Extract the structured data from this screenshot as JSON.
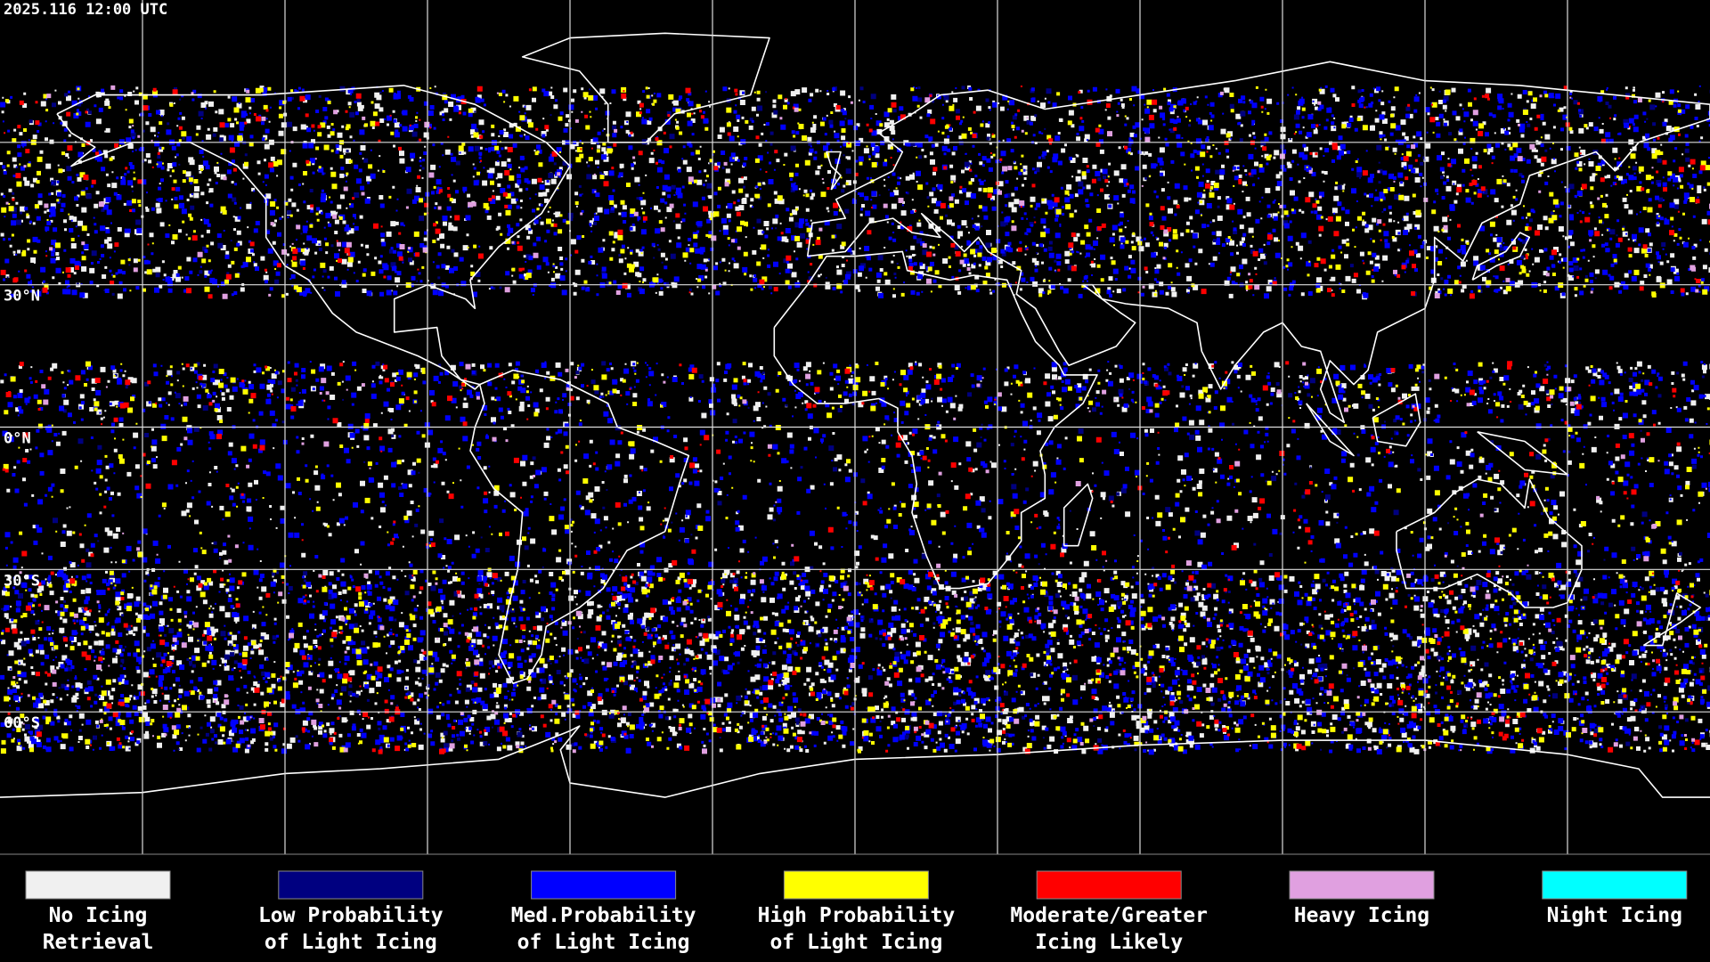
{
  "header": {
    "timestamp": "2025.116 12:00 UTC"
  },
  "map": {
    "latitude_labels": [
      "30°N",
      "0°N",
      "30°S",
      "60°S"
    ]
  },
  "legend": {
    "items": [
      {
        "lines": [
          "No Icing",
          "Retrieval"
        ],
        "color": "#f0f0f0"
      },
      {
        "lines": [
          "Low Probability",
          "of Light Icing"
        ],
        "color": "#000080"
      },
      {
        "lines": [
          "Med.Probability",
          "of Light Icing"
        ],
        "color": "#0000ff"
      },
      {
        "lines": [
          "High Probability",
          "of Light Icing"
        ],
        "color": "#ffff00"
      },
      {
        "lines": [
          "Moderate/Greater",
          "Icing Likely"
        ],
        "color": "#ff0000"
      },
      {
        "lines": [
          "Heavy Icing"
        ],
        "color": "#e0a0e0"
      },
      {
        "lines": [
          "Night Icing"
        ],
        "color": "#00ffff"
      }
    ]
  }
}
